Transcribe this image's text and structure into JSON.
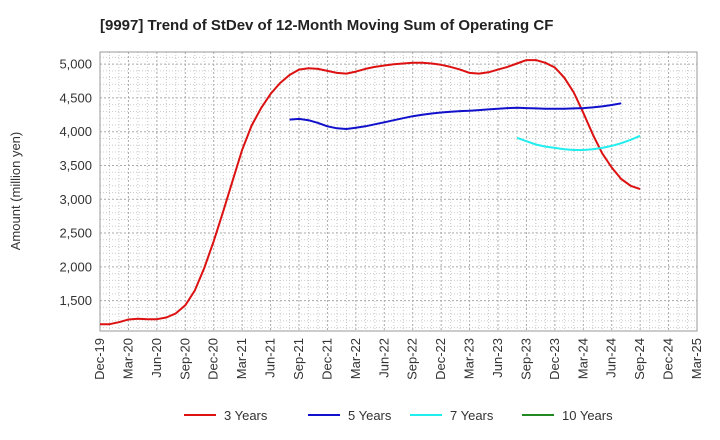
{
  "chart_data": {
    "type": "line",
    "title": "[9997]  Trend of StDev of 12-Month Moving Sum of Operating CF",
    "xlabel": "",
    "ylabel": "Amount (million yen)",
    "ylim": [
      1050,
      5180
    ],
    "yticks": [
      1500,
      2000,
      2500,
      3000,
      3500,
      4000,
      4500,
      5000
    ],
    "ytick_labels": [
      "1,500",
      "2,000",
      "2,500",
      "3,000",
      "3,500",
      "4,000",
      "4,500",
      "5,000"
    ],
    "xticks": [
      "Dec-19",
      "Mar-20",
      "Jun-20",
      "Sep-20",
      "Dec-20",
      "Mar-21",
      "Jun-21",
      "Sep-21",
      "Dec-21",
      "Mar-22",
      "Jun-22",
      "Sep-22",
      "Dec-22",
      "Mar-23",
      "Jun-23",
      "Sep-23",
      "Dec-23",
      "Mar-24",
      "Jun-24",
      "Sep-24",
      "Dec-24",
      "Mar-25"
    ],
    "grid": true,
    "legend_position": "bottom",
    "series": [
      {
        "name": "3 Years",
        "color": "#dd1111",
        "start": "Dec-19",
        "values": [
          1150,
          1150,
          1180,
          1220,
          1230,
          1225,
          1225,
          1250,
          1310,
          1430,
          1650,
          1980,
          2380,
          2820,
          3280,
          3730,
          4090,
          4350,
          4560,
          4720,
          4840,
          4920,
          4940,
          4930,
          4900,
          4870,
          4860,
          4890,
          4930,
          4960,
          4980,
          5000,
          5010,
          5020,
          5020,
          5010,
          4990,
          4960,
          4920,
          4870,
          4860,
          4880,
          4920,
          4960,
          5010,
          5060,
          5060,
          5020,
          4950,
          4800,
          4580,
          4280,
          3960,
          3680,
          3470,
          3300,
          3200,
          3150
        ]
      },
      {
        "name": "5 Years",
        "color": "#1111cc",
        "start": "Aug-21",
        "values": [
          4180,
          4190,
          4170,
          4130,
          4080,
          4050,
          4040,
          4060,
          4080,
          4110,
          4140,
          4170,
          4200,
          4230,
          4250,
          4270,
          4285,
          4295,
          4305,
          4310,
          4320,
          4330,
          4340,
          4350,
          4355,
          4350,
          4345,
          4340,
          4340,
          4340,
          4345,
          4350,
          4360,
          4375,
          4395,
          4420
        ]
      },
      {
        "name": "7 Years",
        "color": "#22eeee",
        "start": "Aug-23",
        "values": [
          3910,
          3860,
          3810,
          3780,
          3760,
          3740,
          3730,
          3730,
          3740,
          3760,
          3790,
          3830,
          3880,
          3940
        ]
      },
      {
        "name": "10 Years",
        "color": "#228822",
        "start": "",
        "values": []
      }
    ]
  }
}
